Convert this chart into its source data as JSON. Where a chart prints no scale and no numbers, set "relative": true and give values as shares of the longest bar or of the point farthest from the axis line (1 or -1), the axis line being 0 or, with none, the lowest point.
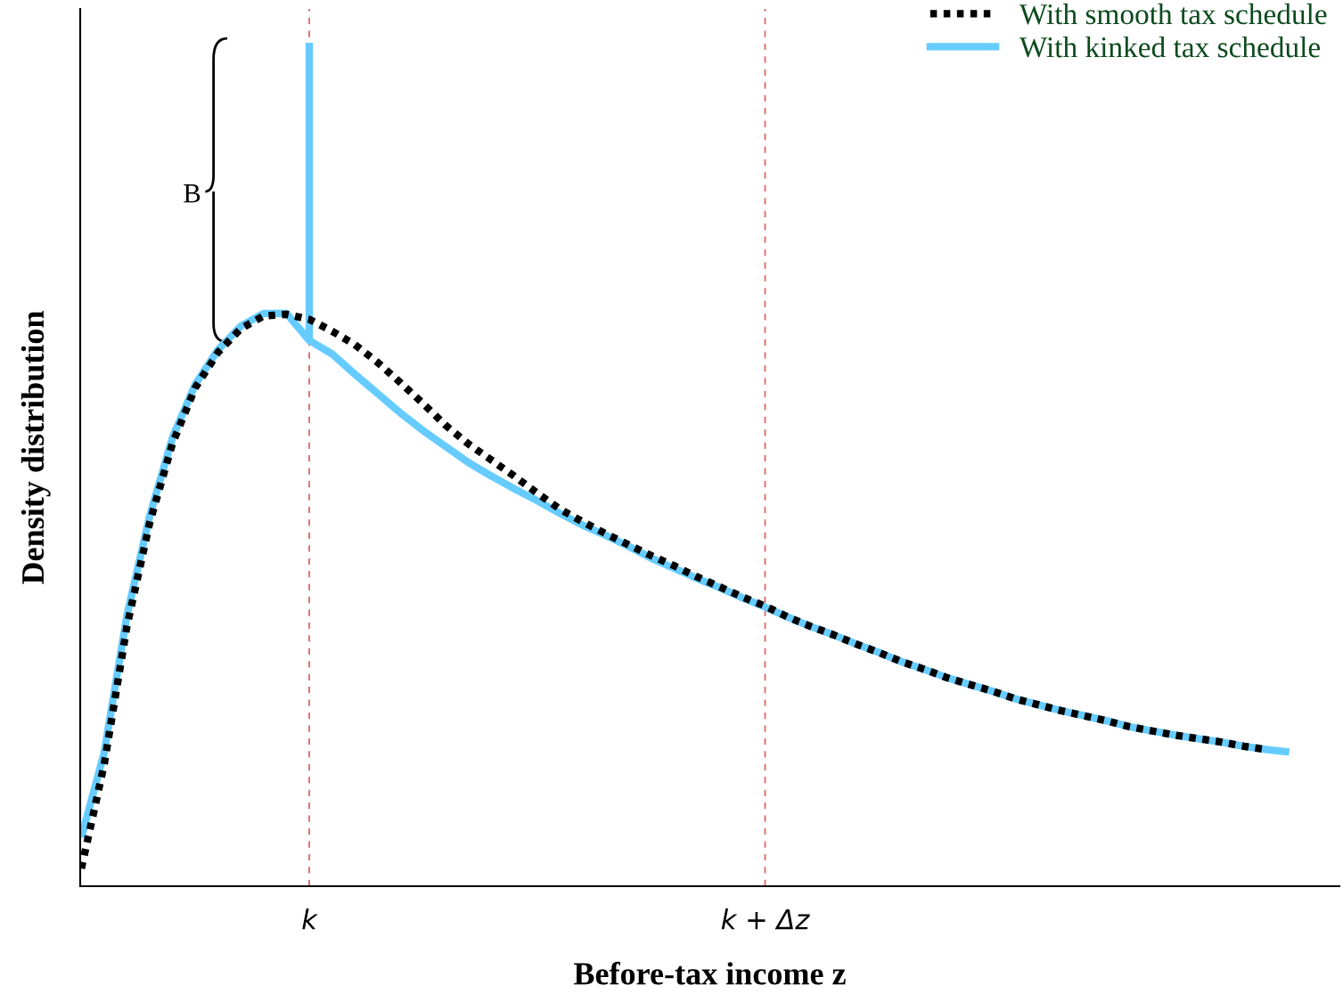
{
  "chart_data": {
    "type": "line",
    "relative": true,
    "xlabel": "Before-tax income z",
    "ylabel": "Density distribution",
    "categories": [
      null,
      null,
      null,
      null,
      null,
      null,
      null,
      null,
      null,
      null,
      "k",
      null,
      null,
      null,
      null,
      null,
      null,
      null,
      null,
      null,
      null,
      null,
      null,
      null,
      null,
      null,
      null,
      null,
      null,
      null,
      "k + Δz",
      null,
      null,
      null,
      null,
      null,
      null,
      null,
      null,
      null,
      null,
      null,
      null,
      null,
      null,
      null,
      null,
      null,
      null,
      null,
      null,
      null,
      null,
      null
    ],
    "series": [
      {
        "name": "With smooth tax schedule",
        "color": "#000000",
        "line_style": "dotted",
        "values": [
          0.021,
          0.144,
          0.308,
          0.431,
          0.525,
          0.591,
          0.633,
          0.661,
          0.676,
          0.678,
          0.672,
          0.658,
          0.642,
          0.621,
          0.597,
          0.572,
          0.546,
          0.524,
          0.505,
          0.486,
          0.466,
          0.447,
          0.432,
          0.418,
          0.405,
          0.392,
          0.38,
          0.367,
          0.355,
          0.343,
          0.332,
          0.319,
          0.308,
          0.298,
          0.287,
          0.277,
          0.266,
          0.257,
          0.247,
          0.239,
          0.231,
          0.222,
          0.215,
          0.208,
          0.202,
          0.196,
          0.189,
          0.184,
          0.179,
          0.175,
          0.171,
          0.166,
          0.162,
          null
        ]
      },
      {
        "name": "With kinked tax schedule",
        "color": "#66ccff",
        "line_style": "solid",
        "values": [
          0.058,
          0.158,
          0.321,
          0.439,
          0.532,
          0.595,
          0.636,
          0.664,
          0.679,
          0.679,
          0.647,
          0.631,
          0.607,
          0.584,
          0.561,
          0.54,
          0.521,
          0.502,
          0.486,
          0.471,
          0.457,
          0.442,
          0.428,
          0.416,
          0.403,
          0.389,
          0.377,
          0.365,
          0.354,
          0.342,
          0.331,
          0.319,
          0.308,
          0.298,
          0.287,
          0.277,
          0.266,
          0.257,
          0.247,
          0.239,
          0.231,
          0.222,
          0.215,
          0.208,
          0.202,
          0.196,
          0.189,
          0.184,
          0.179,
          0.175,
          0.171,
          0.166,
          0.162,
          0.159
        ]
      },
      {
        "type": "line",
        "color": "#66ccff",
        "line_style": "solid",
        "x": [
          "k",
          "k"
        ],
        "values": [
          0.647,
          1.0
        ]
      }
    ],
    "ref_lines": [
      {
        "axis": "x",
        "value": "k",
        "color": "#e06666",
        "line_style": "dashed"
      },
      {
        "axis": "x",
        "value": "k + Δz",
        "color": "#e06666",
        "line_style": "dashed"
      }
    ],
    "annotations": [
      "B"
    ],
    "legend": "top right",
    "grid": false
  }
}
